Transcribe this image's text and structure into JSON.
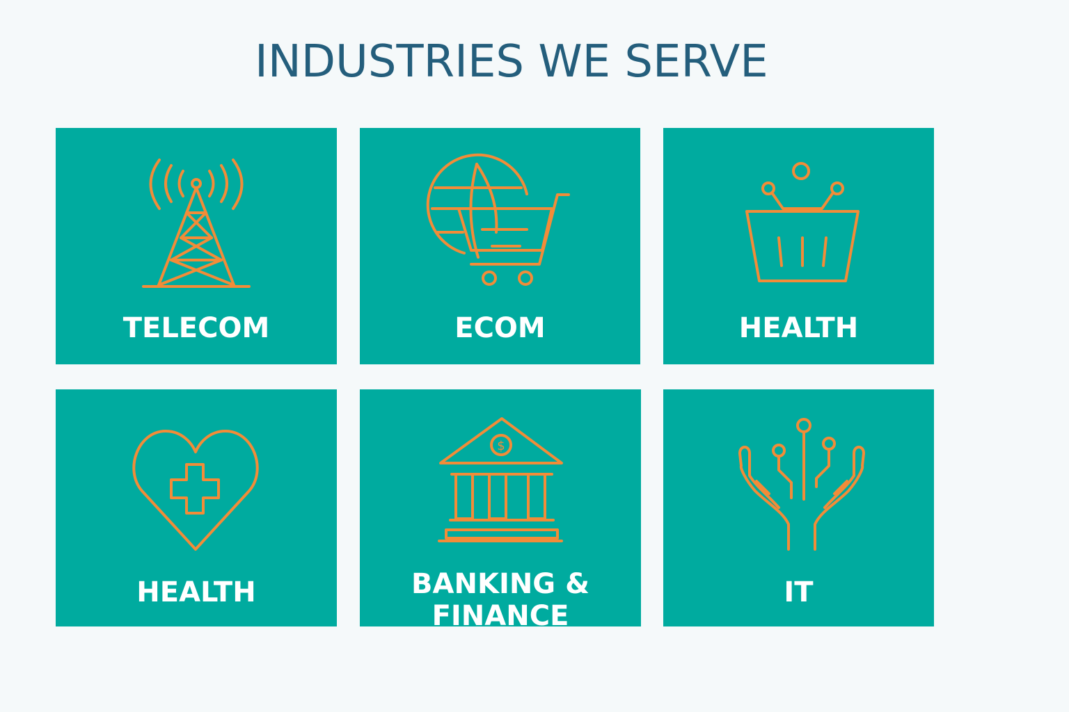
{
  "page": {
    "title": "INDUSTRIES WE SERVE"
  },
  "colors": {
    "tile": "#00ab9f",
    "icon": "#f28c38",
    "title": "#245e7c",
    "label": "#ffffff",
    "background": "#f5f9fa"
  },
  "tiles": [
    {
      "label": "TELECOM",
      "icon": "cell-tower-icon"
    },
    {
      "label": "ECOM",
      "icon": "globe-cart-icon"
    },
    {
      "label": "HEALTH",
      "icon": "basket-icon"
    },
    {
      "label": "HEALTH",
      "icon": "heart-cross-icon"
    },
    {
      "label_line1": "BANKING &",
      "label_line2": "FINANCE",
      "icon": "bank-icon",
      "icon_text": "$"
    },
    {
      "label": "IT",
      "icon": "hands-circuit-icon"
    }
  ]
}
